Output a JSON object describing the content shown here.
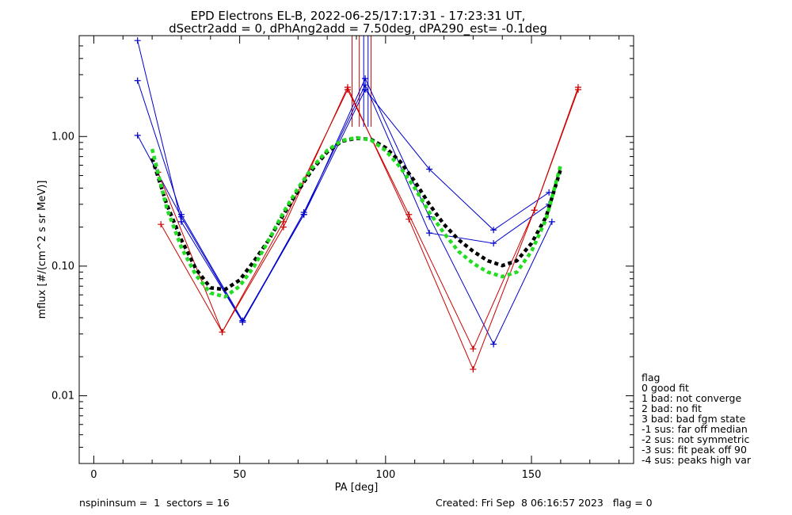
{
  "chart_data": {
    "type": "line",
    "title_line1": "EPD Electrons EL-B, 2022-06-25/17:17:31 - 17:23:31 UT,",
    "title_line2": "dSectr2add = 0, dPhAng2add = 7.50deg, dPA290_est=  -0.1deg",
    "xlabel": "PA [deg]",
    "ylabel": "mflux [#/(cm^2 s sr MeV)]",
    "xlim": [
      -5,
      185
    ],
    "ylim": [
      0.003,
      6.0
    ],
    "ylog": true,
    "xticks": [
      0,
      50,
      100,
      150
    ],
    "xtick_labels": [
      "0",
      "50",
      "100",
      "150"
    ],
    "yticks": [
      0.01,
      0.1,
      1.0
    ],
    "ytick_labels": [
      "0.01",
      "0.10",
      "1.00"
    ],
    "series": [
      {
        "color": "#0000cc",
        "style": "line-plus",
        "x": [
          15,
          30,
          51,
          72,
          93,
          115,
          137,
          156
        ],
        "y": [
          5.5,
          0.22,
          0.037,
          0.25,
          2.3,
          0.56,
          0.19,
          0.37
        ]
      },
      {
        "color": "#0000cc",
        "style": "line-plus",
        "x": [
          15,
          30,
          51,
          72,
          93,
          115,
          137,
          157
        ],
        "y": [
          2.7,
          0.25,
          0.038,
          0.25,
          2.8,
          0.24,
          0.025,
          0.22
        ]
      },
      {
        "color": "#0000cc",
        "style": "line-plus",
        "x": [
          15,
          30,
          51,
          72,
          93,
          115,
          137,
          156
        ],
        "y": [
          1.02,
          0.24,
          0.037,
          0.26,
          2.5,
          0.18,
          0.15,
          0.3
        ]
      },
      {
        "color": "#cc0000",
        "style": "line-plus",
        "x": [
          22,
          44,
          65,
          87,
          108,
          130,
          151,
          166
        ],
        "y": [
          0.53,
          0.031,
          0.22,
          2.3,
          0.25,
          0.023,
          0.27,
          2.4
        ]
      },
      {
        "color": "#cc0000",
        "style": "line-plus",
        "x": [
          23,
          44,
          65,
          87,
          108,
          130,
          151,
          166
        ],
        "y": [
          0.21,
          0.031,
          0.2,
          2.4,
          0.23,
          0.016,
          0.27,
          2.3
        ]
      },
      {
        "color": "#000000",
        "style": "dashed-fit",
        "x": [
          20,
          25,
          30,
          35,
          40,
          45,
          50,
          55,
          60,
          65,
          70,
          75,
          80,
          85,
          90,
          95,
          100,
          105,
          110,
          115,
          120,
          125,
          130,
          135,
          140,
          145,
          150,
          155,
          160
        ],
        "y": [
          0.68,
          0.3,
          0.16,
          0.095,
          0.068,
          0.066,
          0.078,
          0.11,
          0.16,
          0.25,
          0.38,
          0.56,
          0.76,
          0.92,
          0.97,
          0.95,
          0.82,
          0.64,
          0.45,
          0.3,
          0.21,
          0.16,
          0.13,
          0.11,
          0.101,
          0.11,
          0.15,
          0.24,
          0.56
        ]
      },
      {
        "color": "#22dd22",
        "style": "dashed-fit",
        "x": [
          20,
          25,
          30,
          35,
          40,
          45,
          50,
          55,
          60,
          65,
          70,
          75,
          80,
          85,
          90,
          95,
          100,
          105,
          110,
          115,
          120,
          125,
          130,
          135,
          140,
          145,
          150,
          155,
          160
        ],
        "y": [
          0.8,
          0.28,
          0.14,
          0.085,
          0.062,
          0.058,
          0.07,
          0.1,
          0.16,
          0.26,
          0.4,
          0.58,
          0.78,
          0.93,
          0.98,
          0.94,
          0.78,
          0.58,
          0.4,
          0.26,
          0.18,
          0.13,
          0.105,
          0.09,
          0.083,
          0.09,
          0.13,
          0.23,
          0.6
        ]
      }
    ],
    "vlines": [
      {
        "x": 88.5,
        "color": "#cc0000"
      },
      {
        "x": 91,
        "color": "#cc0000"
      },
      {
        "x": 92.5,
        "color": "#0000cc"
      },
      {
        "x": 94,
        "color": "#0000cc"
      },
      {
        "x": 95,
        "color": "#cc0000"
      }
    ],
    "legend": {
      "placement": "right",
      "title": "flag",
      "entries": [
        " 0 good fit",
        " 1 bad: not converge",
        " 2 bad: no fit",
        " 3 bad: bad fgm state",
        "-1 sus: far off median",
        "-2 sus: not symmetric",
        "-3 sus: fit peak off 90",
        "-4 sus: peaks high var"
      ]
    },
    "footer_left": "nspininsum =  1  sectors = 16",
    "footer_right": "Created: Fri Sep  8 06:16:57 2023   flag = 0"
  }
}
